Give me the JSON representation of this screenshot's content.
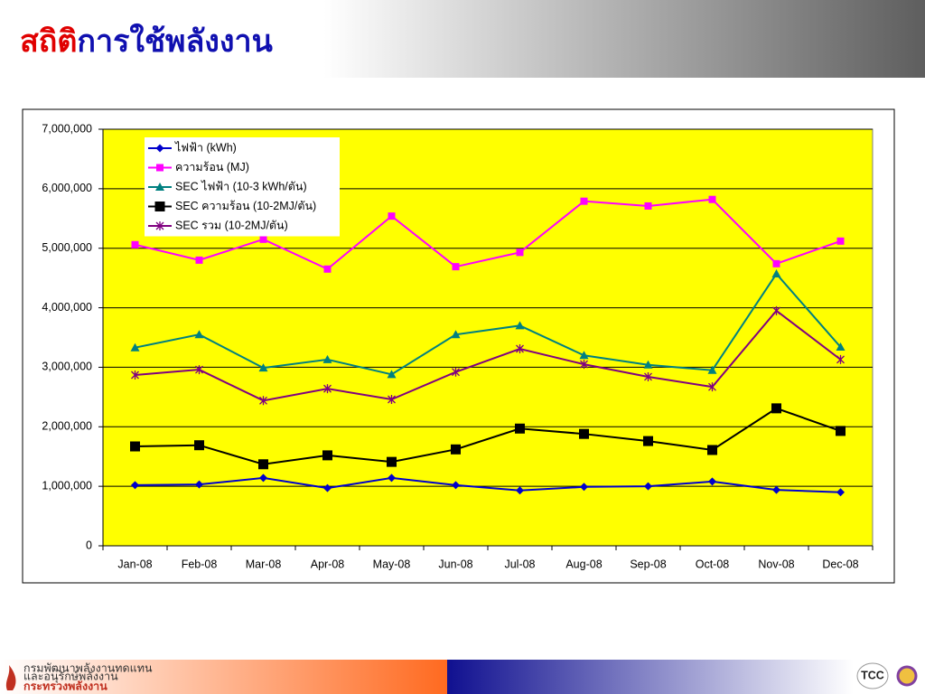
{
  "header": {
    "title_red": "สถิติ",
    "title_blue": "การใช้พลังงาน"
  },
  "chart_data": {
    "type": "line",
    "categories": [
      "Jan-08",
      "Feb-08",
      "Mar-08",
      "Apr-08",
      "May-08",
      "Jun-08",
      "Jul-08",
      "Aug-08",
      "Sep-08",
      "Oct-08",
      "Nov-08",
      "Dec-08"
    ],
    "series": [
      {
        "name": "ไฟฟ้า (kWh)",
        "color": "#0000cc",
        "marker": "diamond",
        "values": [
          1020000,
          1030000,
          1140000,
          970000,
          1140000,
          1020000,
          930000,
          990000,
          1000000,
          1080000,
          940000,
          900000
        ]
      },
      {
        "name": "ความร้อน (MJ)",
        "color": "#ff00ff",
        "marker": "square",
        "values": [
          5060000,
          4800000,
          5150000,
          4650000,
          5540000,
          4690000,
          4930000,
          5790000,
          5710000,
          5820000,
          4740000,
          5120000
        ]
      },
      {
        "name": "SEC  ไฟฟ้า (10-3 kWh/ตัน)",
        "color": "#008080",
        "marker": "triangle",
        "values": [
          3330000,
          3550000,
          2990000,
          3130000,
          2880000,
          3550000,
          3700000,
          3200000,
          3040000,
          2950000,
          4570000,
          3340000
        ]
      },
      {
        "name": "SEC  ความร้อน (10-2MJ/ตัน)",
        "color": "#000000",
        "marker": "bigsquare",
        "values": [
          1670000,
          1690000,
          1370000,
          1520000,
          1410000,
          1620000,
          1970000,
          1880000,
          1760000,
          1610000,
          2310000,
          1930000
        ]
      },
      {
        "name": "SEC รวม (10-2MJ/ตัน)",
        "color": "#800080",
        "marker": "star",
        "values": [
          2870000,
          2960000,
          2440000,
          2640000,
          2460000,
          2920000,
          3310000,
          3050000,
          2840000,
          2670000,
          3950000,
          3130000
        ]
      }
    ],
    "ylim": [
      0,
      7000000
    ],
    "yticks": [
      0,
      {
        "value": 1000000,
        "label": "1,000,000"
      },
      {
        "value": 2000000,
        "label": "2,000,000"
      },
      {
        "value": 3000000,
        "label": "3,000,000"
      },
      {
        "value": 4000000,
        "label": "4,000,000"
      },
      {
        "value": 5000000,
        "label": "5,000,000"
      },
      {
        "value": 6000000,
        "label": "6,000,000"
      },
      {
        "value": 7000000,
        "label": "7,000,000"
      }
    ],
    "grid": true,
    "plot_background": "#ffff00",
    "legend": "upper left"
  },
  "footer": {
    "org_line1": "กรมพัฒนาพลังงานทดแทน",
    "org_line2": "และอนุรักษ์พลังงาน",
    "ministry": "กระทรวงพลังงาน",
    "logo": "TCC"
  }
}
